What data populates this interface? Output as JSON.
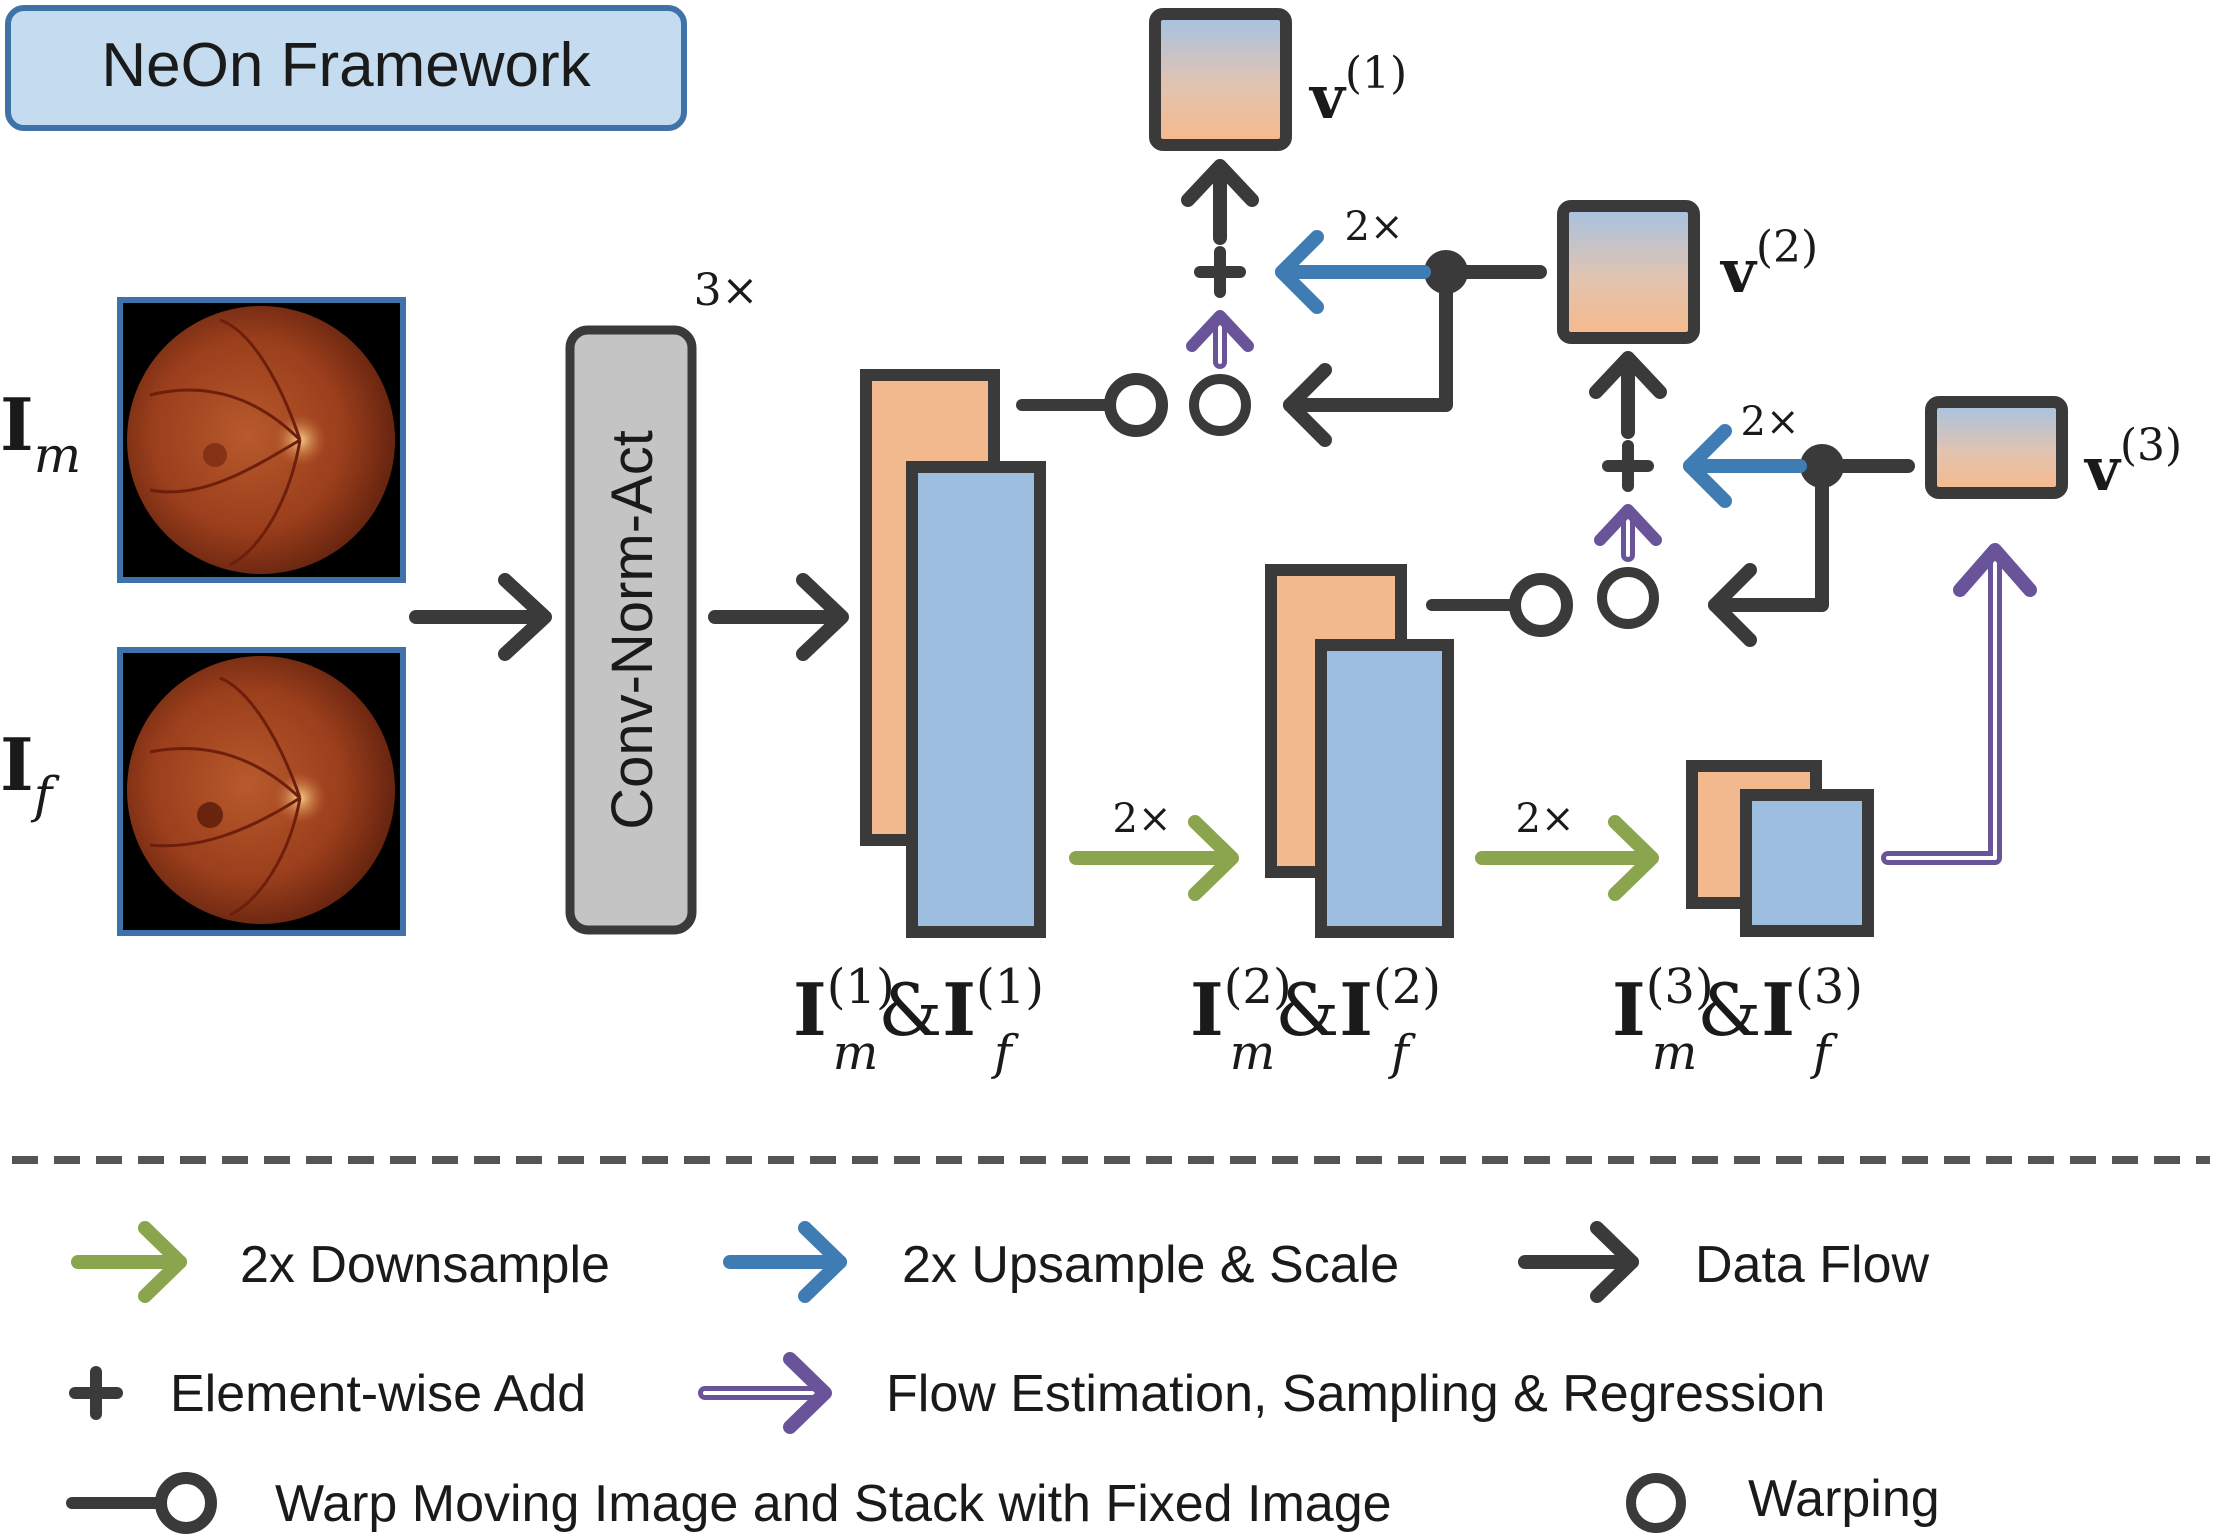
{
  "title": "NeOn Framework",
  "conv_block": "Conv-Norm-Act",
  "conv_repeat": "3×",
  "input_moving": {
    "base": "I",
    "sub": "m"
  },
  "input_fixed": {
    "base": "I",
    "sub": "f"
  },
  "scale_label": "2×",
  "velocity_fields": [
    {
      "base": "v",
      "sup": "(1)"
    },
    {
      "base": "v",
      "sup": "(2)"
    },
    {
      "base": "v",
      "sup": "(3)"
    }
  ],
  "feature_levels": [
    {
      "base": "I",
      "sub_m": "m",
      "sup": "(1)",
      "amp": "&",
      "sub_f": "f"
    },
    {
      "base": "I",
      "sub_m": "m",
      "sup": "(2)",
      "amp": "&",
      "sub_f": "f"
    },
    {
      "base": "I",
      "sub_m": "m",
      "sup": "(3)",
      "amp": "&",
      "sub_f": "f"
    }
  ],
  "legend": {
    "downsample": "2x Downsample",
    "upsample": "2x Upsample & Scale",
    "data_flow": "Data Flow",
    "add": "Element-wise Add",
    "flow_estimation": "Flow Estimation, Sampling & Regression",
    "warp_stack": "Warp Moving Image and Stack with Fixed Image",
    "warping": "Warping"
  },
  "colors": {
    "dark": "#3a3a3a",
    "green": "#8aa54d",
    "blue": "#3f7cb3",
    "purple": "#6a5499",
    "orange_fill": "#f2b98f",
    "blue_fill": "#9dbedf",
    "title_fill": "#c5dbef",
    "title_border": "#3f72a8",
    "conv_fill": "#c4c4c4"
  }
}
